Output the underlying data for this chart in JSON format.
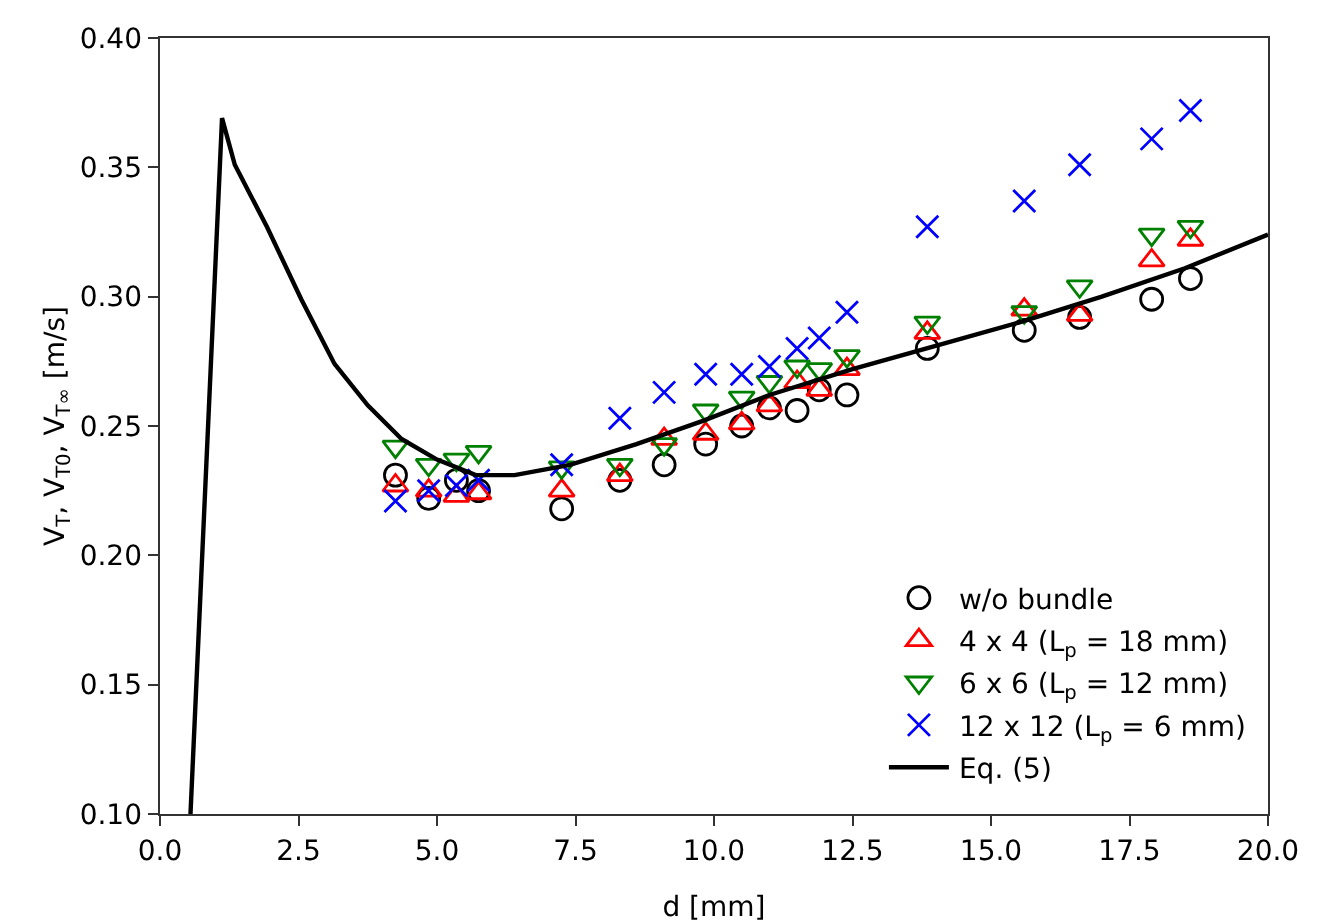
{
  "chart_data": {
    "type": "scatter",
    "xlabel": "d [mm]",
    "ylabel": "V$_{T}$, V$_{T0}$, V$_{T∞}$ [m/s]",
    "xlim": [
      0,
      20
    ],
    "ylim": [
      0.1,
      0.4
    ],
    "xticks": [
      {
        "value": 0,
        "label": "0.0"
      },
      {
        "value": 2.5,
        "label": "2.5"
      },
      {
        "value": 5,
        "label": "5.0"
      },
      {
        "value": 7.5,
        "label": "7.5"
      },
      {
        "value": 10,
        "label": "10.0"
      },
      {
        "value": 12.5,
        "label": "12.5"
      },
      {
        "value": 15,
        "label": "15.0"
      },
      {
        "value": 17.5,
        "label": "17.5"
      },
      {
        "value": 20,
        "label": "20.0"
      }
    ],
    "yticks": [
      {
        "value": 0.1,
        "label": "0.10"
      },
      {
        "value": 0.15,
        "label": "0.15"
      },
      {
        "value": 0.2,
        "label": "0.20"
      },
      {
        "value": 0.25,
        "label": "0.25"
      },
      {
        "value": 0.3,
        "label": "0.30"
      },
      {
        "value": 0.35,
        "label": "0.35"
      },
      {
        "value": 0.4,
        "label": "0.40"
      }
    ],
    "grid": false,
    "legend": "bottom right",
    "x": [
      4.25,
      4.85,
      5.35,
      5.75,
      7.25,
      8.3,
      9.1,
      9.85,
      10.5,
      11.0,
      11.5,
      11.9,
      12.4,
      13.85,
      15.6,
      16.6,
      17.9,
      18.6
    ],
    "series": [
      {
        "name": "w/o bundle",
        "color": "#000000",
        "marker": "circle",
        "values": [
          0.231,
          0.222,
          0.229,
          0.225,
          0.218,
          0.229,
          0.235,
          0.243,
          0.25,
          0.257,
          0.256,
          0.264,
          0.262,
          0.28,
          0.287,
          0.292,
          0.299,
          0.307
        ]
      },
      {
        "name": "4 x 4 (L$_{p}$ = 18 mm)",
        "color": "#ff0000",
        "marker": "triangle",
        "values": [
          0.227,
          0.225,
          0.223,
          0.224,
          0.225,
          0.231,
          0.245,
          0.247,
          0.251,
          0.258,
          0.267,
          0.264,
          0.272,
          0.286,
          0.295,
          0.293,
          0.314,
          0.322
        ]
      },
      {
        "name": "6 x 6 (L$_{p}$ = 12 mm)",
        "color": "#008000",
        "marker": "triangle-down",
        "values": [
          0.242,
          0.235,
          0.237,
          0.24,
          0.234,
          0.235,
          0.243,
          0.256,
          0.261,
          0.267,
          0.273,
          0.272,
          0.277,
          0.29,
          0.294,
          0.304,
          0.324,
          0.327
        ]
      },
      {
        "name": "12 x 12 (L$_{p}$ = 6 mm)",
        "color": "#0000ff",
        "marker": "cross",
        "values": [
          0.221,
          0.225,
          0.227,
          0.229,
          0.235,
          0.253,
          0.263,
          0.27,
          0.27,
          0.273,
          0.28,
          0.284,
          0.294,
          0.327,
          0.337,
          0.351,
          0.361,
          0.372
        ]
      },
      {
        "name": "Eq. (5)",
        "type": "line",
        "color": "#000000",
        "marker": "none",
        "line_style": "solid",
        "x": [
          0.55,
          1.12,
          1.35,
          1.93,
          2.55,
          3.15,
          3.75,
          4.36,
          5.0,
          5.7,
          6.4,
          7.4,
          8.6,
          9.8,
          11.0,
          12.5,
          14.0,
          15.5,
          17.0,
          18.5,
          20.0
        ],
        "values": [
          0.1,
          0.369,
          0.351,
          0.327,
          0.299,
          0.274,
          0.258,
          0.245,
          0.237,
          0.231,
          0.231,
          0.235,
          0.243,
          0.252,
          0.262,
          0.272,
          0.281,
          0.29,
          0.3,
          0.311,
          0.324
        ]
      }
    ]
  }
}
